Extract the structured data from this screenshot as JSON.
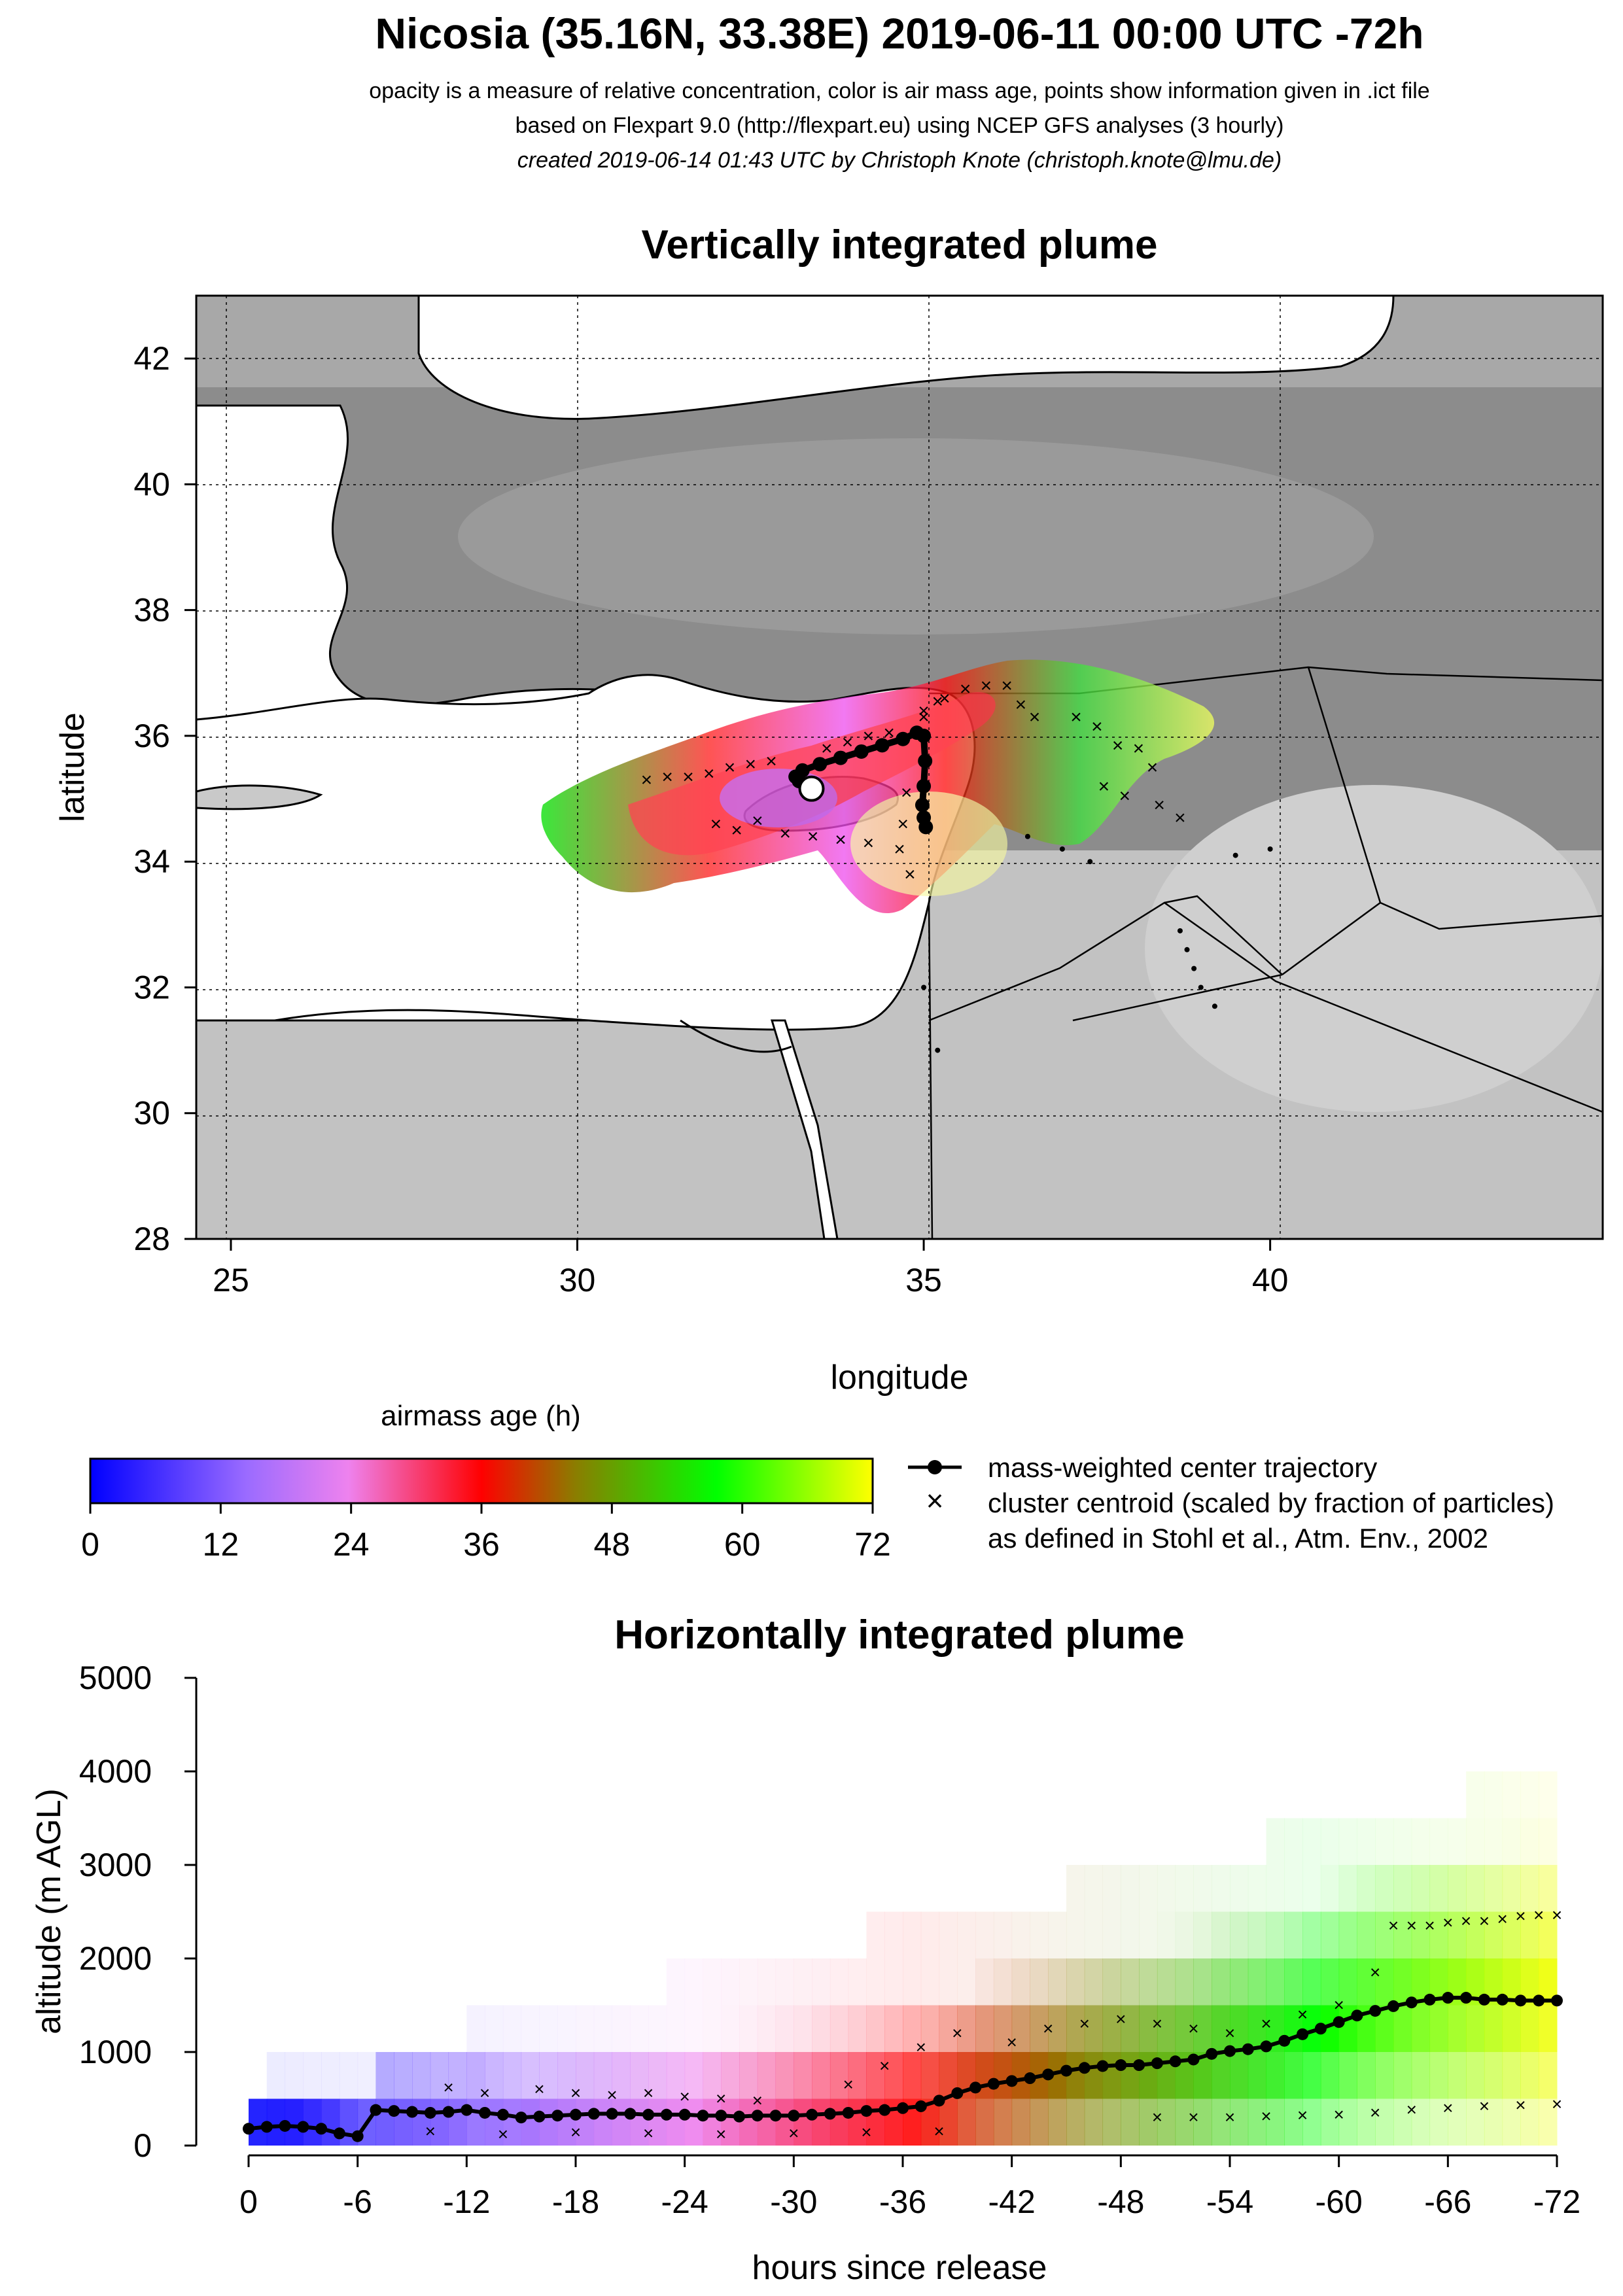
{
  "header": {
    "title": "Nicosia (35.16N, 33.38E) 2019-06-11 00:00 UTC -72h",
    "line1": "opacity is a measure of relative concentration, color is air mass age, points show information given in .ict file",
    "line2": "based on Flexpart 9.0 (http://flexpart.eu) using NCEP GFS analyses (3 hourly)",
    "line3": "created 2019-06-14 01:43 UTC by Christoph Knote (christoph.knote@lmu.de)"
  },
  "colors": {
    "land": "#8c8c8c",
    "sea": "#ffffff",
    "age_scale": [
      "#0000ff",
      "#ee82ee",
      "#ff0000",
      "#8b7d00",
      "#00ff00",
      "#ffff00"
    ]
  },
  "chart_data": [
    {
      "type": "heatmap",
      "title": "Vertically integrated plume",
      "xlabel": "longitude",
      "ylabel": "latitude",
      "xlim": [
        24.5,
        44.8
      ],
      "ylim": [
        28,
        43
      ],
      "xticks": [
        25,
        30,
        35,
        40
      ],
      "yticks": [
        28,
        30,
        32,
        34,
        36,
        38,
        40,
        42
      ],
      "grid": true,
      "release_point": {
        "lon": 33.38,
        "lat": 35.16
      },
      "center_trajectory": {
        "name": "mass-weighted center trajectory",
        "lon": [
          33.38,
          33.3,
          33.2,
          33.15,
          33.25,
          33.5,
          33.8,
          34.1,
          34.4,
          34.7,
          34.9,
          35.0,
          35.02,
          35.0,
          34.98,
          35.0,
          35.03
        ],
        "lat": [
          35.16,
          35.2,
          35.28,
          35.35,
          35.45,
          35.55,
          35.65,
          35.75,
          35.85,
          35.95,
          36.05,
          36.0,
          35.6,
          35.2,
          34.9,
          34.7,
          34.55
        ]
      },
      "cluster_centroids": {
        "name": "cluster centroid (scaled by fraction of particles)",
        "lon": [
          31.0,
          31.3,
          31.6,
          31.9,
          32.2,
          32.5,
          32.8,
          33.6,
          33.9,
          34.2,
          34.5,
          34.75,
          34.7,
          34.65,
          34.8,
          35.0,
          35.3,
          35.6,
          35.9,
          36.2,
          36.4,
          36.6,
          37.2,
          37.5,
          37.8,
          38.1,
          38.3,
          37.6,
          37.9,
          38.4,
          38.7,
          32.0,
          32.3,
          32.6,
          33.0,
          33.4,
          33.8,
          34.2,
          35.0,
          35.2
        ],
        "lat": [
          35.3,
          35.35,
          35.35,
          35.4,
          35.5,
          35.55,
          35.6,
          35.8,
          35.9,
          36.0,
          36.05,
          35.1,
          34.6,
          34.2,
          33.8,
          36.3,
          36.6,
          36.75,
          36.8,
          36.8,
          36.5,
          36.3,
          36.3,
          36.15,
          35.85,
          35.8,
          35.5,
          35.2,
          35.05,
          34.9,
          34.7,
          34.6,
          34.5,
          34.65,
          34.45,
          34.4,
          34.35,
          34.3,
          36.4,
          36.55
        ]
      },
      "small_points": {
        "lon": [
          36.5,
          37.0,
          37.4,
          38.7,
          38.8,
          38.9,
          39.0,
          39.2,
          39.5,
          40.0,
          35.0,
          35.2
        ],
        "lat": [
          34.4,
          34.2,
          34.0,
          32.9,
          32.6,
          32.3,
          32.0,
          31.7,
          34.1,
          34.2,
          32.0,
          31.0
        ]
      }
    },
    {
      "type": "heatmap",
      "title": "Horizontally integrated plume",
      "xlabel": "hours since release",
      "ylabel": "altitude (m AGL)",
      "xlim": [
        0,
        -72
      ],
      "ylim": [
        0,
        5000
      ],
      "xticks": [
        0,
        -6,
        -12,
        -18,
        -24,
        -30,
        -36,
        -42,
        -48,
        -54,
        -60,
        -66,
        -72
      ],
      "yticks": [
        0,
        1000,
        2000,
        3000,
        4000,
        5000
      ],
      "colorbar": {
        "label": "airmass age (h)",
        "ticks": [
          0,
          12,
          24,
          36,
          48,
          60,
          72
        ]
      },
      "center_trajectory": {
        "name": "mass-weighted center trajectory",
        "x": [
          0,
          -1,
          -2,
          -3,
          -4,
          -5,
          -6,
          -7,
          -8,
          -9,
          -10,
          -11,
          -12,
          -13,
          -14,
          -15,
          -16,
          -17,
          -18,
          -19,
          -20,
          -21,
          -22,
          -23,
          -24,
          -25,
          -26,
          -27,
          -28,
          -29,
          -30,
          -31,
          -32,
          -33,
          -34,
          -35,
          -36,
          -37,
          -38,
          -39,
          -40,
          -41,
          -42,
          -43,
          -44,
          -45,
          -46,
          -47,
          -48,
          -49,
          -50,
          -51,
          -52,
          -53,
          -54,
          -55,
          -56,
          -57,
          -58,
          -59,
          -60,
          -61,
          -62,
          -63,
          -64,
          -65,
          -66,
          -67,
          -68,
          -69,
          -70,
          -71,
          -72
        ],
        "y": [
          180,
          200,
          210,
          200,
          180,
          130,
          100,
          380,
          370,
          360,
          350,
          360,
          380,
          350,
          330,
          300,
          310,
          320,
          330,
          340,
          340,
          340,
          330,
          330,
          330,
          320,
          320,
          310,
          320,
          320,
          320,
          330,
          340,
          350,
          370,
          380,
          400,
          420,
          480,
          560,
          620,
          660,
          690,
          720,
          760,
          800,
          830,
          850,
          860,
          860,
          880,
          900,
          920,
          980,
          1010,
          1030,
          1060,
          1120,
          1190,
          1250,
          1320,
          1390,
          1440,
          1490,
          1530,
          1560,
          1580,
          1580,
          1560,
          1560,
          1550,
          1550,
          1550
        ]
      },
      "cluster_centroids": {
        "name": "cluster centroid (scaled by fraction of particles)",
        "x": [
          -11,
          -13,
          -16,
          -18,
          -20,
          -22,
          -24,
          -26,
          -28,
          -33,
          -35,
          -37,
          -39,
          -42,
          -44,
          -46,
          -48,
          -50,
          -52,
          -54,
          -56,
          -58,
          -60,
          -62,
          -63,
          -64,
          -65,
          -66,
          -67,
          -68,
          -69,
          -70,
          -71,
          -72,
          -50,
          -52,
          -54,
          -56,
          -58,
          -60,
          -62,
          -64,
          -66,
          -68,
          -70,
          -72,
          -10,
          -14,
          -18,
          -22,
          -26,
          -30,
          -34,
          -38
        ],
        "y": [
          620,
          560,
          600,
          560,
          540,
          560,
          520,
          500,
          480,
          650,
          850,
          1050,
          1200,
          1100,
          1250,
          1300,
          1350,
          1300,
          1250,
          1200,
          1300,
          1400,
          1500,
          1850,
          2350,
          2350,
          2350,
          2380,
          2400,
          2400,
          2420,
          2450,
          2460,
          2460,
          300,
          300,
          300,
          310,
          320,
          330,
          350,
          380,
          400,
          420,
          430,
          440,
          150,
          120,
          140,
          130,
          120,
          130,
          140,
          150
        ]
      }
    }
  ],
  "legend": {
    "trajectory": "mass-weighted center trajectory",
    "centroid": "cluster centroid (scaled by fraction of particles)",
    "reference": "as defined in Stohl et al., Atm. Env., 2002"
  }
}
